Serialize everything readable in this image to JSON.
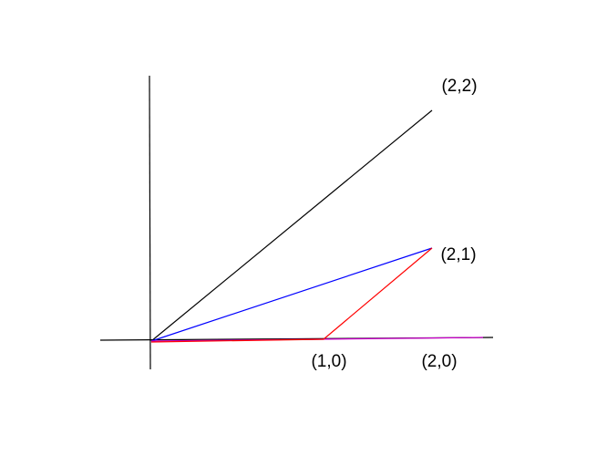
{
  "nodes": [
    {
      "label": "(2,2)"
    },
    {
      "label": "(2,1)"
    },
    {
      "label": "(1,0)"
    },
    {
      "label": "(2,0)"
    }
  ]
}
